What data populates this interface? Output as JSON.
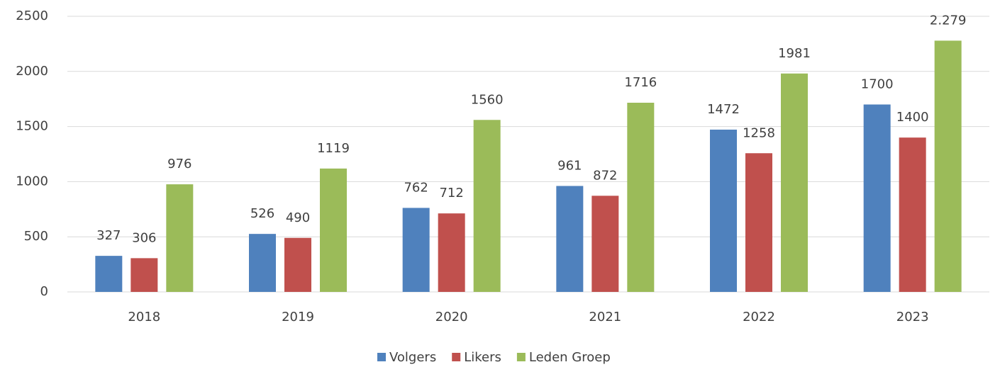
{
  "chart_data": {
    "type": "bar",
    "categories": [
      "2018",
      "2019",
      "2020",
      "2021",
      "2022",
      "2023"
    ],
    "series": [
      {
        "name": "Volgers",
        "color": "#4f81bd",
        "values": [
          327,
          526,
          762,
          961,
          1472,
          1700
        ]
      },
      {
        "name": "Likers",
        "color": "#c0504d",
        "values": [
          306,
          490,
          712,
          872,
          1258,
          1400
        ]
      },
      {
        "name": "Leden Groep",
        "color": "#9bbb59",
        "values": [
          976,
          1119,
          1560,
          1716,
          1981,
          2279
        ],
        "value_labels": [
          "976",
          "1119",
          "1560",
          "1716",
          "1981",
          "2.279"
        ]
      }
    ],
    "ylim": [
      0,
      2500
    ],
    "yticks": [
      0,
      500,
      1000,
      1500,
      2000,
      2500
    ],
    "grid": true,
    "legend": "bottom"
  }
}
